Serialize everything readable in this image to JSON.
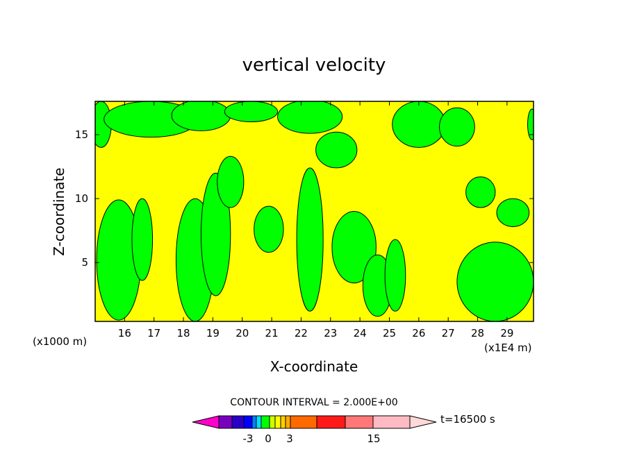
{
  "chart_data": {
    "type": "heatmap",
    "title": "vertical velocity",
    "xlabel": "X-coordinate",
    "ylabel": "Z-coordinate",
    "x_scale_note": "(x1E4 m)",
    "y_scale_note": "(x1000 m)",
    "xlim": [
      15.0,
      29.9
    ],
    "ylim": [
      0.4,
      17.6
    ],
    "x_ticks": [
      16,
      17,
      18,
      19,
      20,
      21,
      22,
      23,
      24,
      25,
      26,
      27,
      28,
      29
    ],
    "y_ticks": [
      5,
      10,
      15
    ],
    "contour_interval_text": "CONTOUR INTERVAL = 2.000E+00",
    "time_label": "t=16500 s",
    "colorbar": {
      "tick_labels": [
        "-3",
        "0",
        "3",
        "15"
      ],
      "colors": [
        "#ff00cc",
        "#7a00c0",
        "#2a00c8",
        "#0000ff",
        "#0080ff",
        "#00e0ff",
        "#00ff00",
        "#ccff00",
        "#ffff00",
        "#ffd000",
        "#ffaa00",
        "#ff6a00",
        "#ff1a1a",
        "#ff7777",
        "#ffbbc4",
        "#ffd8d8"
      ]
    },
    "regions": [
      {
        "level": "0 to 1 (green)",
        "color": "#00ff00"
      },
      {
        "level": "1 to 3 (yellow)",
        "color": "#ffff00"
      }
    ],
    "green_blobs": [
      {
        "x": 15.2,
        "z": 15.8,
        "rx": 0.35,
        "rz": 1.8
      },
      {
        "x": 16.9,
        "z": 16.2,
        "rx": 1.6,
        "rz": 1.4
      },
      {
        "x": 18.6,
        "z": 16.5,
        "rx": 1.0,
        "rz": 1.2
      },
      {
        "x": 20.3,
        "z": 16.8,
        "rx": 0.9,
        "rz": 0.8
      },
      {
        "x": 22.3,
        "z": 16.4,
        "rx": 1.1,
        "rz": 1.3
      },
      {
        "x": 23.2,
        "z": 13.8,
        "rx": 0.7,
        "rz": 1.4
      },
      {
        "x": 26.0,
        "z": 15.8,
        "rx": 0.9,
        "rz": 1.8
      },
      {
        "x": 27.3,
        "z": 15.6,
        "rx": 0.6,
        "rz": 1.5
      },
      {
        "x": 29.85,
        "z": 15.8,
        "rx": 0.15,
        "rz": 1.2
      },
      {
        "x": 15.8,
        "z": 5.2,
        "rx": 0.75,
        "rz": 4.7
      },
      {
        "x": 16.6,
        "z": 6.8,
        "rx": 0.35,
        "rz": 3.2
      },
      {
        "x": 18.4,
        "z": 5.2,
        "rx": 0.65,
        "rz": 4.8
      },
      {
        "x": 19.1,
        "z": 7.2,
        "rx": 0.5,
        "rz": 4.8
      },
      {
        "x": 19.6,
        "z": 11.3,
        "rx": 0.45,
        "rz": 2.0
      },
      {
        "x": 20.9,
        "z": 7.6,
        "rx": 0.5,
        "rz": 1.8
      },
      {
        "x": 22.3,
        "z": 6.8,
        "rx": 0.45,
        "rz": 5.6
      },
      {
        "x": 23.8,
        "z": 6.2,
        "rx": 0.75,
        "rz": 2.8
      },
      {
        "x": 24.6,
        "z": 3.2,
        "rx": 0.5,
        "rz": 2.4
      },
      {
        "x": 25.2,
        "z": 4.0,
        "rx": 0.35,
        "rz": 2.8
      },
      {
        "x": 28.6,
        "z": 3.5,
        "rx": 1.3,
        "rz": 3.1
      },
      {
        "x": 29.2,
        "z": 8.9,
        "rx": 0.55,
        "rz": 1.1
      },
      {
        "x": 28.1,
        "z": 10.5,
        "rx": 0.5,
        "rz": 1.2
      }
    ]
  }
}
